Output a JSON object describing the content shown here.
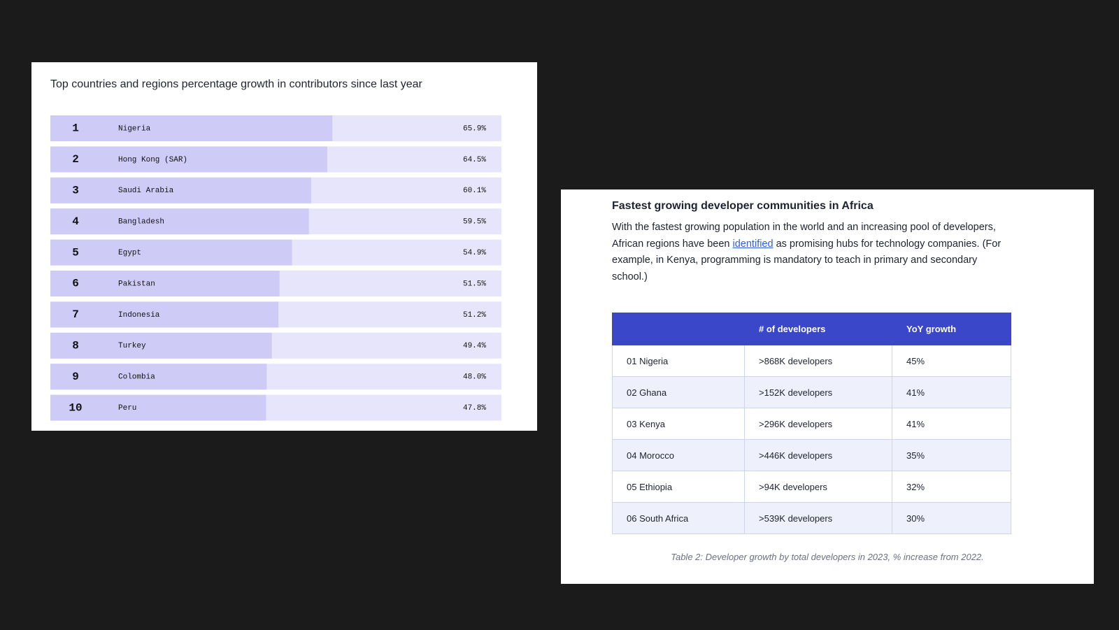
{
  "chart_data": {
    "type": "bar",
    "orientation": "horizontal",
    "title": "Top countries and regions percentage growth in contributors since last year",
    "ranks": [
      1,
      2,
      3,
      4,
      5,
      6,
      7,
      8,
      9,
      10
    ],
    "categories": [
      "Nigeria",
      "Hong Kong (SAR)",
      "Saudi Arabia",
      "Bangladesh",
      "Egypt",
      "Pakistan",
      "Indonesia",
      "Turkey",
      "Colombia",
      "Peru"
    ],
    "values": [
      65.9,
      64.5,
      60.1,
      59.5,
      54.9,
      51.5,
      51.2,
      49.4,
      48.0,
      47.8
    ],
    "value_labels": [
      "65.9%",
      "64.5%",
      "60.1%",
      "59.5%",
      "54.9%",
      "51.5%",
      "51.2%",
      "49.4%",
      "48.0%",
      "47.8%"
    ],
    "color": "#cfcbf7",
    "track_color": "#e7e5fb",
    "xlim": [
      -11,
      112
    ]
  },
  "document": {
    "title": "Fastest growing developer communities in Africa",
    "paragraph": {
      "before": "With the fastest growing population in the world and an increasing pool of developers, African regions have been ",
      "link": "identified",
      "after": " as promising hubs for technology companies. (For example, in Kenya, programming is mandatory to teach in primary and secondary school.)"
    },
    "table": {
      "header": [
        "# of developers",
        "YoY growth"
      ],
      "rows": [
        [
          "01 Nigeria",
          ">868K developers",
          "45%"
        ],
        [
          "02 Ghana",
          ">152K developers",
          "41%"
        ],
        [
          "03 Kenya",
          ">296K developers",
          "41%"
        ],
        [
          "04 Morocco",
          ">446K developers",
          "35%"
        ],
        [
          "05 Ethiopia",
          ">94K developers",
          "32%"
        ],
        [
          "06 South Africa",
          ">539K developers",
          "30%"
        ]
      ]
    },
    "caption": "Table 2: Developer growth by total developers in 2023, % increase from 2022."
  }
}
